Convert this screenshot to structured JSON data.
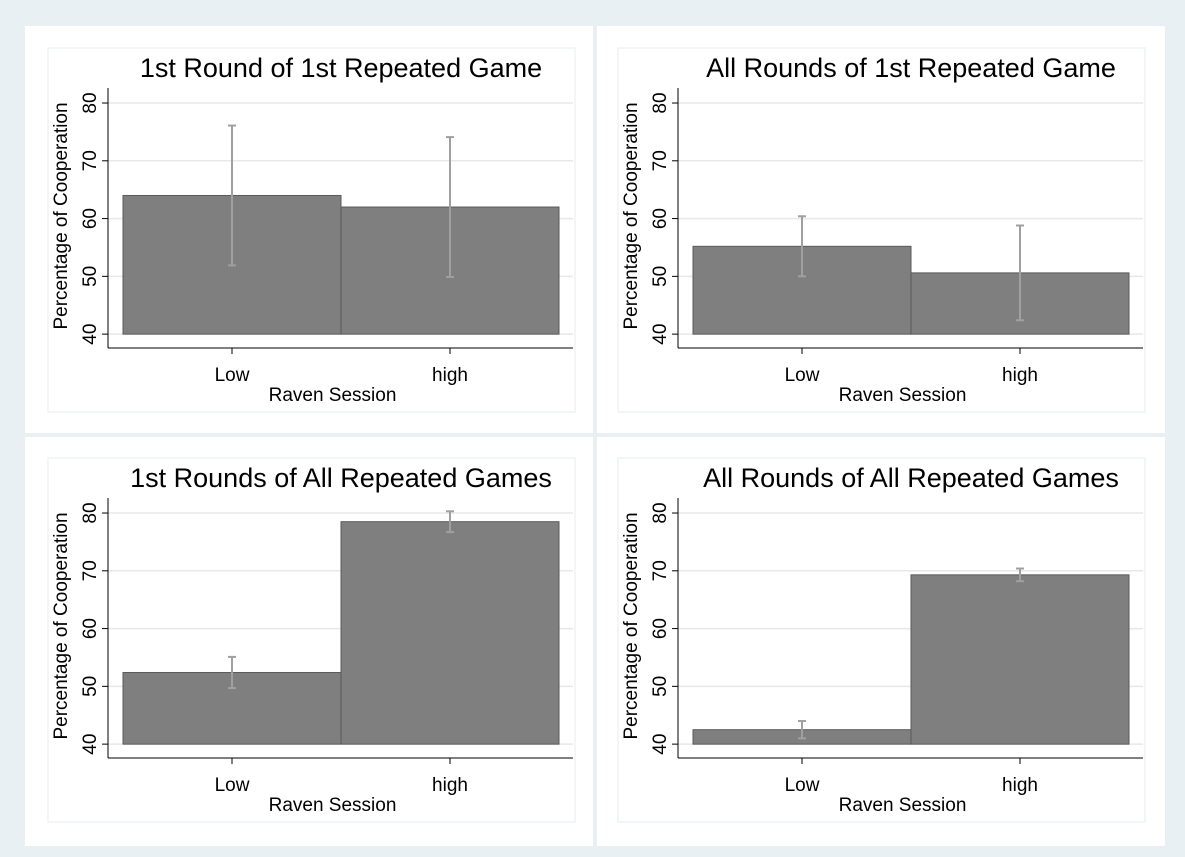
{
  "chart_data": [
    {
      "type": "bar",
      "title": "1st Round of 1st Repeated Game",
      "x_label": "Raven Session",
      "y_label": "Percentage of Cooperation",
      "categories": [
        "Low",
        "high"
      ],
      "values": [
        64,
        62
      ],
      "errors": [
        12.1,
        12.1
      ],
      "color": "#7f7f7f",
      "error_color": "#a0a0a0",
      "ylim": [
        37.6,
        82.6
      ],
      "yticks": [
        40,
        50,
        60,
        70,
        80
      ],
      "grid": true
    },
    {
      "type": "bar",
      "title": "All Rounds of 1st Repeated Game",
      "x_label": "Raven Session",
      "y_label": "Percentage of Cooperation",
      "categories": [
        "Low",
        "high"
      ],
      "values": [
        55.2,
        50.6
      ],
      "errors": [
        5.2,
        8.2
      ],
      "color": "#7f7f7f",
      "error_color": "#a0a0a0",
      "ylim": [
        37.6,
        82.6
      ],
      "yticks": [
        40,
        50,
        60,
        70,
        80
      ],
      "grid": true
    },
    {
      "type": "bar",
      "title": "1st Rounds of All Repeated Games",
      "x_label": "Raven Session",
      "y_label": "Percentage of Cooperation",
      "categories": [
        "Low",
        "high"
      ],
      "values": [
        52.4,
        78.5
      ],
      "errors": [
        2.7,
        1.8
      ],
      "color": "#7f7f7f",
      "error_color": "#a0a0a0",
      "ylim": [
        37.6,
        82.6
      ],
      "yticks": [
        40,
        50,
        60,
        70,
        80
      ],
      "grid": true
    },
    {
      "type": "bar",
      "title": "All Rounds of All Repeated Games",
      "x_label": "Raven Session",
      "y_label": "Percentage of Cooperation",
      "categories": [
        "Low",
        "high"
      ],
      "values": [
        42.5,
        69.3
      ],
      "errors": [
        1.5,
        1.1
      ],
      "color": "#7f7f7f",
      "error_color": "#a0a0a0",
      "ylim": [
        37.6,
        82.6
      ],
      "yticks": [
        40,
        50,
        60,
        70,
        80
      ],
      "grid": true
    }
  ]
}
